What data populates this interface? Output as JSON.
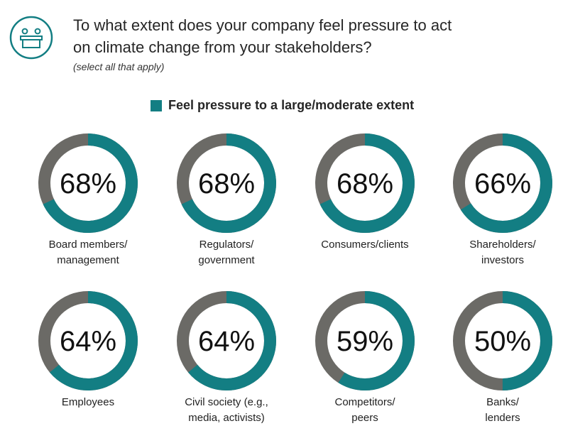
{
  "header": {
    "title": "To what extent does your company feel pressure to act on climate change from your stakeholders?",
    "subtitle": "(select all that apply)",
    "icon": "stakeholders-table-icon"
  },
  "colors": {
    "accent": "#137E83",
    "remainder": "#6B6A66"
  },
  "chart_data": {
    "type": "pie",
    "variant": "donut-grid",
    "legend": "Feel pressure to a large/moderate extent",
    "categories": [
      "Board members/\nmanagement",
      "Regulators/\ngovernment",
      "Consumers/clients",
      "Shareholders/\ninvestors",
      "Employees",
      "Civil society (e.g.,\nmedia, activists)",
      "Competitors/\npeers",
      "Banks/\nlenders"
    ],
    "values": [
      68,
      68,
      68,
      66,
      64,
      64,
      59,
      50
    ],
    "value_labels": [
      "68%",
      "68%",
      "68%",
      "66%",
      "64%",
      "64%",
      "59%",
      "50%"
    ]
  }
}
